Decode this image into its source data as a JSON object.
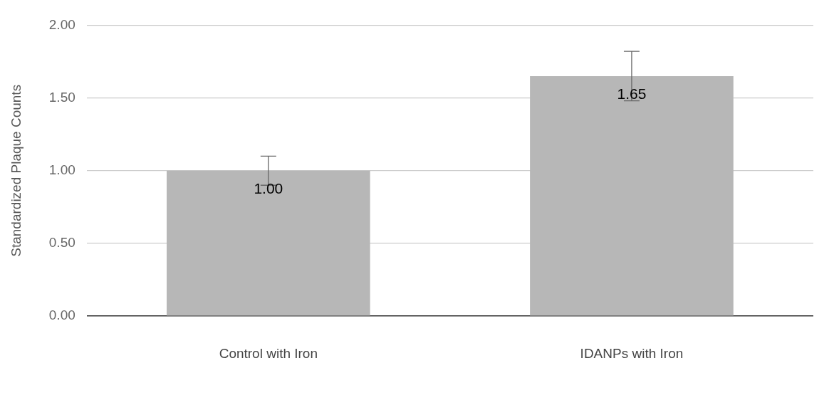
{
  "chart_data": {
    "type": "bar",
    "ylabel": "Standardized Plaque Counts",
    "categories": [
      "Control with Iron",
      "IDANPs with Iron"
    ],
    "values": [
      1.0,
      1.65
    ],
    "color": "#b7b7b7",
    "errors": [
      0.1,
      0.17
    ],
    "value_labels": [
      "1.00",
      "1.65"
    ],
    "ylim": [
      0,
      2
    ],
    "yticks": [
      {
        "value": 0,
        "label": "0.00"
      },
      {
        "value": 0.5,
        "label": "0.50"
      },
      {
        "value": 1,
        "label": "1.00"
      },
      {
        "value": 1.5,
        "label": "1.50"
      },
      {
        "value": 2,
        "label": "2.00"
      }
    ],
    "grid": "y",
    "legend": false
  }
}
